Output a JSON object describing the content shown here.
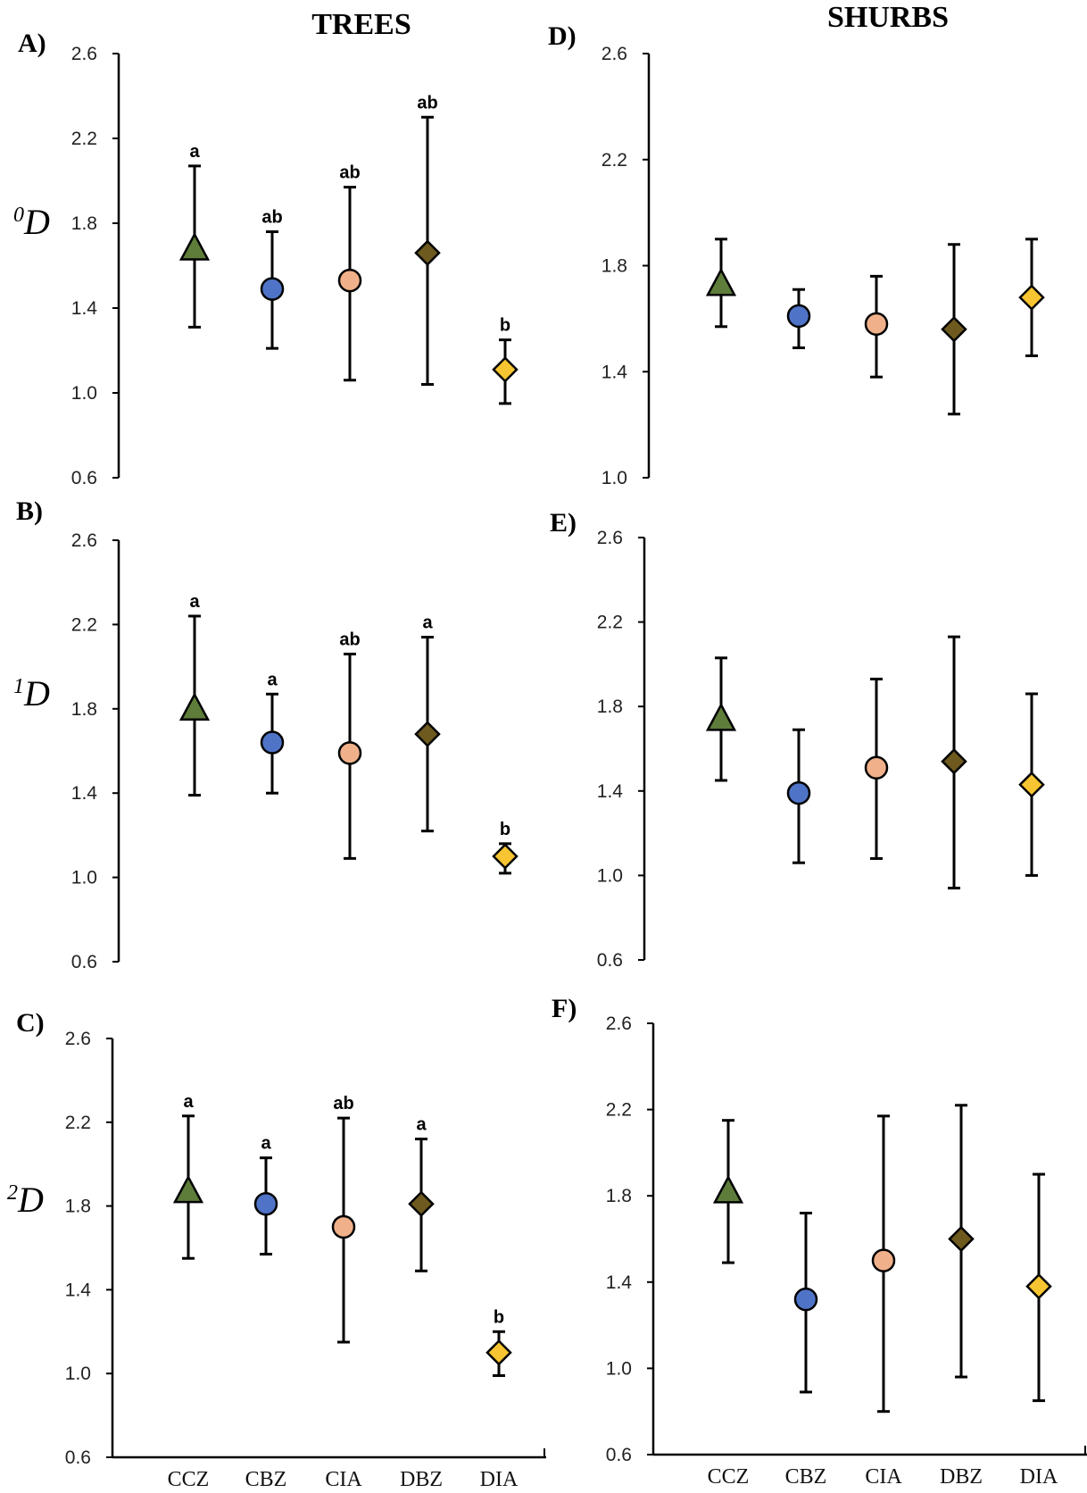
{
  "column_titles": {
    "left": "TREES",
    "right": "SHURBS"
  },
  "colors": {
    "CCZ": "#5e7d3a",
    "CBZ": "#4f74c7",
    "CIA": "#f0b18a",
    "DBZ": "#6e5a1e",
    "DIA": "#f7c531"
  },
  "marker_shapes": {
    "CCZ": "triangle",
    "CBZ": "circle",
    "CIA": "circle",
    "DBZ": "diamond",
    "DIA": "diamond"
  },
  "chart_data": [
    {
      "id": "A",
      "label": "A)",
      "type": "scatter",
      "title": "TREES",
      "ylabel_sup": "0",
      "ylabel": "D",
      "ylim": [
        0.6,
        2.6
      ],
      "yticks": [
        "0.6",
        "1.0",
        "1.4",
        "1.8",
        "2.2",
        "2.6"
      ],
      "categories": [
        "CCZ",
        "CBZ",
        "CIA",
        "DBZ",
        "DIA"
      ],
      "show_categories": false,
      "values": [
        1.68,
        1.49,
        1.53,
        1.66,
        1.11
      ],
      "lower": [
        1.31,
        1.21,
        1.06,
        1.04,
        0.95
      ],
      "upper": [
        2.07,
        1.76,
        1.97,
        2.3,
        1.25
      ],
      "letters": [
        "a",
        "ab",
        "ab",
        "ab",
        "b"
      ]
    },
    {
      "id": "B",
      "label": "B)",
      "type": "scatter",
      "ylabel_sup": "1",
      "ylabel": "D",
      "ylim": [
        0.6,
        2.6
      ],
      "yticks": [
        "0.6",
        "1.0",
        "1.4",
        "1.8",
        "2.2",
        "2.6"
      ],
      "categories": [
        "CCZ",
        "CBZ",
        "CIA",
        "DBZ",
        "DIA"
      ],
      "show_categories": false,
      "values": [
        1.8,
        1.64,
        1.59,
        1.68,
        1.1
      ],
      "lower": [
        1.39,
        1.4,
        1.09,
        1.22,
        1.02
      ],
      "upper": [
        2.24,
        1.87,
        2.06,
        2.14,
        1.16
      ],
      "letters": [
        "a",
        "a",
        "ab",
        "a",
        "b"
      ]
    },
    {
      "id": "C",
      "label": "C)",
      "type": "scatter",
      "ylabel_sup": "2",
      "ylabel": "D",
      "ylim": [
        0.6,
        2.6
      ],
      "yticks": [
        "0.6",
        "1.0",
        "1.4",
        "1.8",
        "2.2",
        "2.6"
      ],
      "categories": [
        "CCZ",
        "CBZ",
        "CIA",
        "DBZ",
        "DIA"
      ],
      "show_categories": true,
      "values": [
        1.87,
        1.81,
        1.7,
        1.81,
        1.1
      ],
      "lower": [
        1.55,
        1.57,
        1.15,
        1.49,
        0.99
      ],
      "upper": [
        2.23,
        2.03,
        2.22,
        2.12,
        1.2
      ],
      "letters": [
        "a",
        "a",
        "ab",
        "a",
        "b"
      ]
    },
    {
      "id": "D",
      "label": "D)",
      "type": "scatter",
      "title": "SHURBS",
      "ylim": [
        1.0,
        2.6
      ],
      "yticks": [
        "1.0",
        "1.4",
        "1.8",
        "2.2",
        "2.6"
      ],
      "categories": [
        "CCZ",
        "CBZ",
        "CIA",
        "DBZ",
        "DIA"
      ],
      "show_categories": false,
      "values": [
        1.73,
        1.61,
        1.58,
        1.56,
        1.68
      ],
      "lower": [
        1.57,
        1.49,
        1.38,
        1.24,
        1.46
      ],
      "upper": [
        1.9,
        1.71,
        1.76,
        1.88,
        1.9
      ],
      "letters": [
        "",
        "",
        "",
        "",
        ""
      ]
    },
    {
      "id": "E",
      "label": "E)",
      "type": "scatter",
      "ylim": [
        0.6,
        2.6
      ],
      "yticks": [
        "0.6",
        "1.0",
        "1.4",
        "1.8",
        "2.2",
        "2.6"
      ],
      "categories": [
        "CCZ",
        "CBZ",
        "CIA",
        "DBZ",
        "DIA"
      ],
      "show_categories": false,
      "values": [
        1.74,
        1.39,
        1.51,
        1.54,
        1.43
      ],
      "lower": [
        1.45,
        1.06,
        1.08,
        0.94,
        1.0
      ],
      "upper": [
        2.03,
        1.69,
        1.93,
        2.13,
        1.86
      ],
      "letters": [
        "",
        "",
        "",
        "",
        ""
      ]
    },
    {
      "id": "F",
      "label": "F)",
      "type": "scatter",
      "ylim": [
        0.6,
        2.6
      ],
      "yticks": [
        "0.6",
        "1.0",
        "1.4",
        "1.8",
        "2.2",
        "2.6"
      ],
      "categories": [
        "CCZ",
        "CBZ",
        "CIA",
        "DBZ",
        "DIA"
      ],
      "show_categories": true,
      "values": [
        1.82,
        1.32,
        1.5,
        1.6,
        1.38
      ],
      "lower": [
        1.49,
        0.89,
        0.8,
        0.96,
        0.85
      ],
      "upper": [
        2.15,
        1.72,
        2.17,
        2.22,
        1.9
      ],
      "letters": [
        "",
        "",
        "",
        "",
        ""
      ]
    }
  ]
}
